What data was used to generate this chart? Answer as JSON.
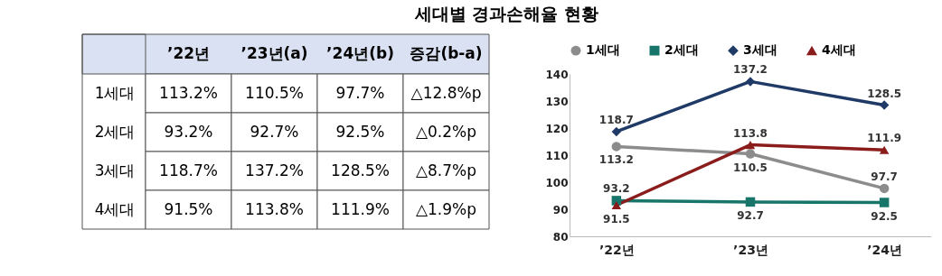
{
  "chart_data": [
    {
      "type": "heatmap",
      "title": "세대별 경과손해율 현황",
      "cells": [
        [
          null,
          null,
          null,
          null
        ],
        [
          null,
          null,
          null,
          null
        ],
        [
          null,
          null,
          null,
          null
        ],
        [
          null,
          null,
          null,
          null
        ]
      ],
      "categories": [
        "’22년",
        "’23년(a)",
        "’24년(b)",
        "증감(b-a)"
      ],
      "y_categories": [
        "1세대",
        "2세대",
        "3세대",
        "4세대"
      ],
      "cell_labels": [
        [
          "113.2%",
          "110.5%",
          "97.7%",
          "△12.8%p"
        ],
        [
          "93.2%",
          "92.7%",
          "92.5%",
          "△0.2%p"
        ],
        [
          "118.7%",
          "137.2%",
          "128.5%",
          "△8.7%p"
        ],
        [
          "91.5%",
          "113.8%",
          "111.9%",
          "△1.9%p"
        ]
      ]
    },
    {
      "type": "line",
      "categories": [
        "’22년",
        "’23년",
        "’24년"
      ],
      "series": [
        {
          "name": "1세대",
          "color": "#8c8c8c",
          "marker": "circle",
          "values": [
            113.2,
            110.5,
            97.7
          ]
        },
        {
          "name": "2세대",
          "color": "#17756a",
          "marker": "square",
          "values": [
            93.2,
            92.7,
            92.5
          ]
        },
        {
          "name": "3세대",
          "color": "#1f3a66",
          "marker": "diamond",
          "values": [
            118.7,
            137.2,
            128.5
          ]
        },
        {
          "name": "4세대",
          "color": "#8b1c1c",
          "marker": "triangle",
          "values": [
            91.5,
            113.8,
            111.9
          ]
        }
      ],
      "ylim": [
        80,
        140
      ],
      "yticks": [
        80,
        90,
        100,
        110,
        120,
        130,
        140
      ],
      "legend": "top",
      "data_labels": true,
      "grid": false
    }
  ]
}
